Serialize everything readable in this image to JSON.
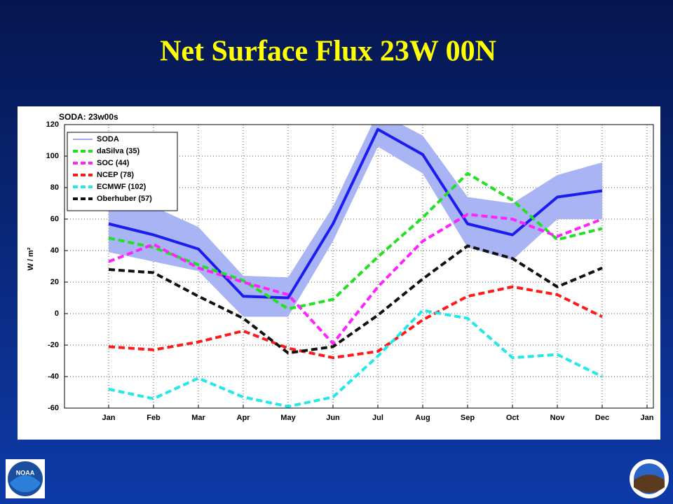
{
  "slide_title": "Net Surface Flux 23W 00N",
  "noaa_logo_text": "NOAA",
  "chart_data": {
    "type": "line",
    "title": "SODA: 23w00s",
    "y_label": "W / m²",
    "categories": [
      "Jan",
      "Feb",
      "Mar",
      "Apr",
      "May",
      "Jun",
      "Jul",
      "Aug",
      "Sep",
      "Oct",
      "Nov",
      "Dec",
      "Jan"
    ],
    "ylim": [
      -60,
      120
    ],
    "yticks": [
      -60,
      -40,
      -20,
      0,
      20,
      40,
      60,
      80,
      100,
      120
    ],
    "grid": true,
    "legend": "upper left",
    "series": [
      {
        "name": "SODA",
        "color": "#1c1cf0",
        "dashed": false,
        "legend_color": "#9aa8f5",
        "band_color": "#a8b4f4",
        "values": [
          57,
          50,
          41,
          11,
          10,
          57,
          117,
          101,
          57,
          50,
          74,
          78,
          null
        ],
        "band_upper": [
          75,
          68,
          55,
          24,
          23,
          68,
          128,
          113,
          74,
          70,
          88,
          96,
          null
        ],
        "band_lower": [
          39,
          33,
          27,
          -2,
          -2,
          46,
          106,
          89,
          42,
          34,
          60,
          60,
          null
        ]
      },
      {
        "name": "daSilva (35)",
        "color": "#22e022",
        "dashed": true,
        "values": [
          48,
          42,
          31,
          21,
          3,
          9,
          36,
          61,
          89,
          72,
          47,
          54,
          null
        ]
      },
      {
        "name": "SOC (44)",
        "color": "#ff22ff",
        "dashed": true,
        "values": [
          33,
          44,
          29,
          20,
          12,
          -19,
          17,
          46,
          63,
          60,
          49,
          60,
          null
        ]
      },
      {
        "name": "NCEP (78)",
        "color": "#ff1a1a",
        "dashed": true,
        "values": [
          -21,
          -23,
          -18,
          -11,
          -22,
          -28,
          -24,
          -4,
          11,
          17,
          12,
          -2,
          null
        ]
      },
      {
        "name": "ECMWF (102)",
        "color": "#22e8e8",
        "dashed": true,
        "values": [
          -48,
          -54,
          -41,
          -53,
          -59,
          -53,
          -27,
          2,
          -3,
          -28,
          -26,
          -40,
          null
        ]
      },
      {
        "name": "Oberhuber (57)",
        "color": "#111111",
        "dashed": true,
        "values": [
          28,
          26,
          11,
          -3,
          -25,
          -21,
          -1,
          22,
          43,
          35,
          17,
          29,
          null
        ]
      }
    ]
  }
}
